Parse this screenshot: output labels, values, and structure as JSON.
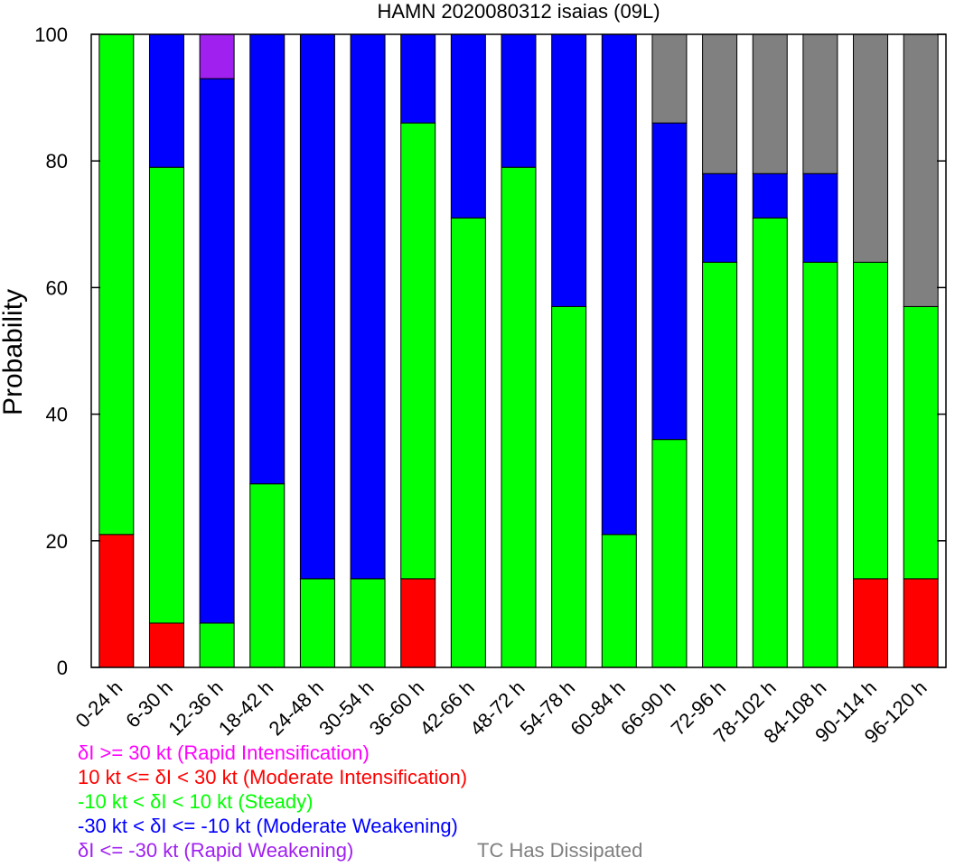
{
  "chart_data": {
    "type": "bar",
    "stacked": true,
    "title": "HAMN 2020080312 isaias (09L)",
    "xlabel": "",
    "ylabel": "Probability",
    "ylim": [
      0,
      100
    ],
    "yticks": [
      "0",
      "20",
      "40",
      "60",
      "80",
      "100"
    ],
    "grid": false,
    "categories": [
      "0-24 h",
      "6-30 h",
      "12-36 h",
      "18-42 h",
      "24-48 h",
      "30-54 h",
      "36-60 h",
      "42-66 h",
      "48-72 h",
      "54-78 h",
      "60-84 h",
      "66-90 h",
      "72-96 h",
      "78-102 h",
      "84-108 h",
      "90-114 h",
      "96-120 h"
    ],
    "series": [
      {
        "key": "ri",
        "color": "#ff00ff",
        "values": [
          0,
          0,
          0,
          0,
          0,
          0,
          0,
          0,
          0,
          0,
          0,
          0,
          0,
          0,
          0,
          0,
          0
        ]
      },
      {
        "key": "mi",
        "color": "#ff0000",
        "values": [
          21,
          7,
          0,
          0,
          0,
          0,
          14,
          0,
          0,
          0,
          0,
          0,
          0,
          0,
          0,
          14,
          14
        ]
      },
      {
        "key": "st",
        "color": "#00ff00",
        "values": [
          79,
          72,
          7,
          29,
          14,
          14,
          72,
          71,
          79,
          57,
          21,
          36,
          64,
          71,
          64,
          50,
          43
        ]
      },
      {
        "key": "mw",
        "color": "#0000ff",
        "values": [
          0,
          21,
          86,
          71,
          86,
          86,
          14,
          29,
          21,
          43,
          79,
          50,
          14,
          7,
          14,
          0,
          0
        ]
      },
      {
        "key": "rw",
        "color": "#a020f0",
        "values": [
          0,
          0,
          7,
          0,
          0,
          0,
          0,
          0,
          0,
          0,
          0,
          0,
          0,
          0,
          0,
          0,
          0
        ]
      },
      {
        "key": "ds",
        "color": "#808080",
        "values": [
          0,
          0,
          0,
          0,
          0,
          0,
          0,
          0,
          0,
          0,
          0,
          14,
          22,
          22,
          22,
          36,
          43
        ]
      }
    ],
    "legend": {
      "ri": "δI >= 30 kt (Rapid Intensification)",
      "mi": "10 kt <= δI < 30 kt (Moderate Intensification)",
      "st": "-10 kt < δI < 10 kt (Steady)",
      "mw": "-30 kt < δI <= -10 kt (Moderate Weakening)",
      "rw": "δI <= -30 kt (Rapid Weakening)",
      "ds": "TC Has Dissipated"
    },
    "legend_placement": "bottom"
  }
}
